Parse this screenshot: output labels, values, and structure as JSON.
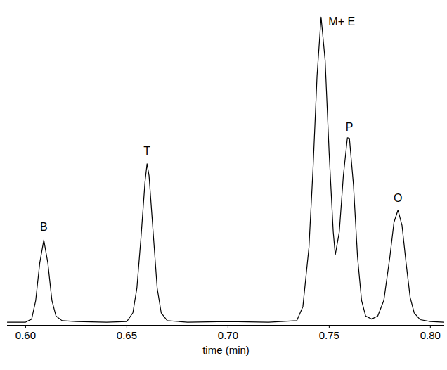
{
  "chart_data": {
    "type": "line",
    "x_label": "time (min)",
    "xlim": [
      0.591,
      0.807
    ],
    "xticks": [
      {
        "value": 0.6,
        "label": "0.60"
      },
      {
        "value": 0.65,
        "label": "0.65"
      },
      {
        "value": 0.7,
        "label": "0.70"
      },
      {
        "value": 0.75,
        "label": "0.75"
      },
      {
        "value": 0.8,
        "label": "0.80"
      }
    ],
    "ylim": [
      0,
      102
    ],
    "yticks": [],
    "tick_labels": "x",
    "grid": false,
    "color": "#000000",
    "x": [
      0.591,
      0.6,
      0.603,
      0.605,
      0.607,
      0.609,
      0.611,
      0.613,
      0.615,
      0.618,
      0.625,
      0.64,
      0.65,
      0.653,
      0.655,
      0.657,
      0.659,
      0.66,
      0.661,
      0.663,
      0.665,
      0.667,
      0.67,
      0.68,
      0.7,
      0.72,
      0.734,
      0.737,
      0.74,
      0.742,
      0.744,
      0.746,
      0.748,
      0.75,
      0.752,
      0.753,
      0.755,
      0.757,
      0.759,
      0.76,
      0.762,
      0.764,
      0.766,
      0.768,
      0.771,
      0.774,
      0.777,
      0.78,
      0.782,
      0.784,
      0.786,
      0.788,
      0.79,
      0.792,
      0.795,
      0.8,
      0.807
    ],
    "values": [
      1.0,
      1.0,
      2,
      8,
      20,
      27.4,
      20,
      8,
      3,
      1.5,
      1.2,
      1.0,
      1.2,
      4,
      12,
      28,
      46,
      51.8,
      48,
      30,
      12,
      4,
      1.5,
      1.0,
      1.2,
      1.0,
      1.5,
      6,
      25,
      50,
      80,
      98.9,
      85,
      55,
      30,
      22.6,
      30,
      48,
      60.2,
      60,
      45,
      22,
      8,
      3,
      2,
      3,
      8,
      22,
      33,
      37,
      32,
      20,
      9,
      4,
      1.8,
      1.2,
      1.0
    ],
    "annotations": [
      {
        "text": "B",
        "x": 0.609,
        "y": 31.4
      },
      {
        "text": "T",
        "x": 0.66,
        "y": 55.8
      },
      {
        "text": "M+ E",
        "x": 0.7562,
        "y": 97.3
      },
      {
        "text": "P",
        "x": 0.76,
        "y": 63.5
      },
      {
        "text": "O",
        "x": 0.784,
        "y": 40.7
      }
    ]
  }
}
